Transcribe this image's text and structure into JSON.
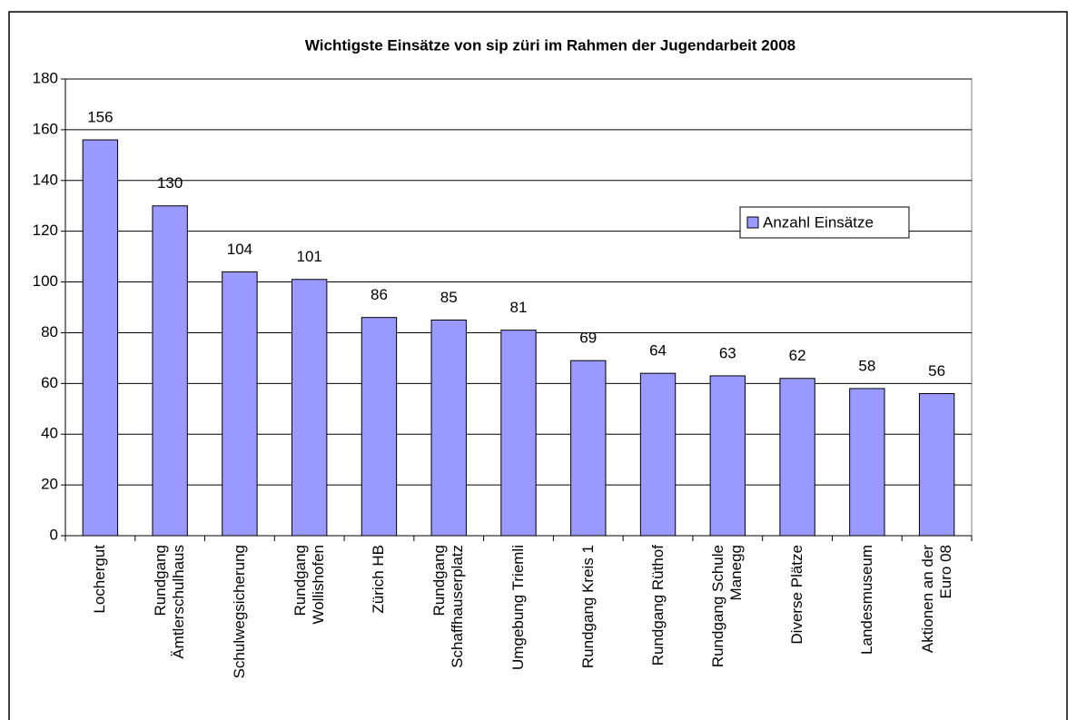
{
  "chart_data": {
    "type": "bar",
    "title": "Wichtigste Einsätze von sip züri im Rahmen der Jugendarbeit 2008",
    "categories": [
      "Lochergut",
      "Rundgang\nÄmtlerschulhaus",
      "Schulwegsicherung",
      "Rundgang\nWollishofen",
      "Zürich HB",
      "Rundgang\nSchaffhauserplatz",
      "Umgebung Triemli",
      "Rundgang Kreis 1",
      "Rundgang Rüthof",
      "Rundgang Schule\nManegg",
      "Diverse Plätze",
      "Landesmuseum",
      "Aktionen an der\nEuro 08"
    ],
    "series": [
      {
        "name": "Anzahl Einsätze",
        "color": "#9999ff",
        "values": [
          156,
          130,
          104,
          101,
          86,
          85,
          81,
          69,
          64,
          63,
          62,
          58,
          56
        ]
      }
    ],
    "ylim": [
      0,
      180
    ],
    "yticks": [
      0,
      20,
      40,
      60,
      80,
      100,
      120,
      140,
      160,
      180
    ],
    "grid": true,
    "legend": "right"
  }
}
